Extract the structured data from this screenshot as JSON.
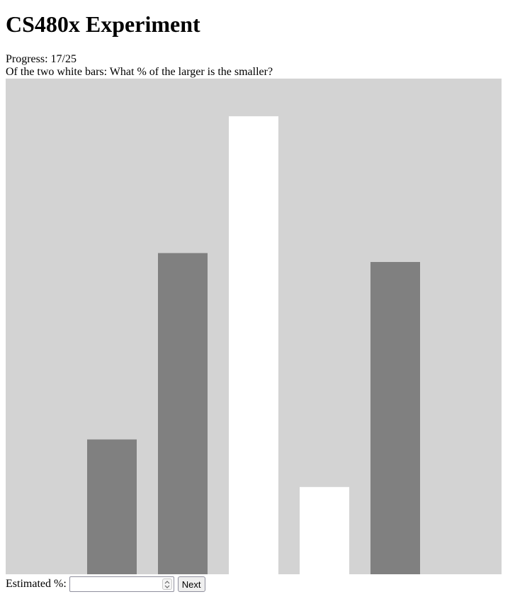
{
  "page": {
    "title": "CS480x Experiment",
    "progress_label": "Progress: 17/25",
    "question": "Of the two white bars: What % of the larger is the smaller?"
  },
  "chart_data": {
    "type": "bar",
    "background_color": "#d3d3d3",
    "ylim": [
      0,
      100
    ],
    "bars": [
      {
        "value": 27.2,
        "color": "#808080"
      },
      {
        "value": 64.8,
        "color": "#808080"
      },
      {
        "value": 92.4,
        "color": "#ffffff",
        "highlighted": true
      },
      {
        "value": 17.6,
        "color": "#ffffff",
        "highlighted": true
      },
      {
        "value": 63.0,
        "color": "#808080"
      }
    ]
  },
  "form": {
    "estimate_label": "Estimated %:",
    "estimate_value": "",
    "estimate_placeholder": "",
    "next_label": "Next"
  }
}
